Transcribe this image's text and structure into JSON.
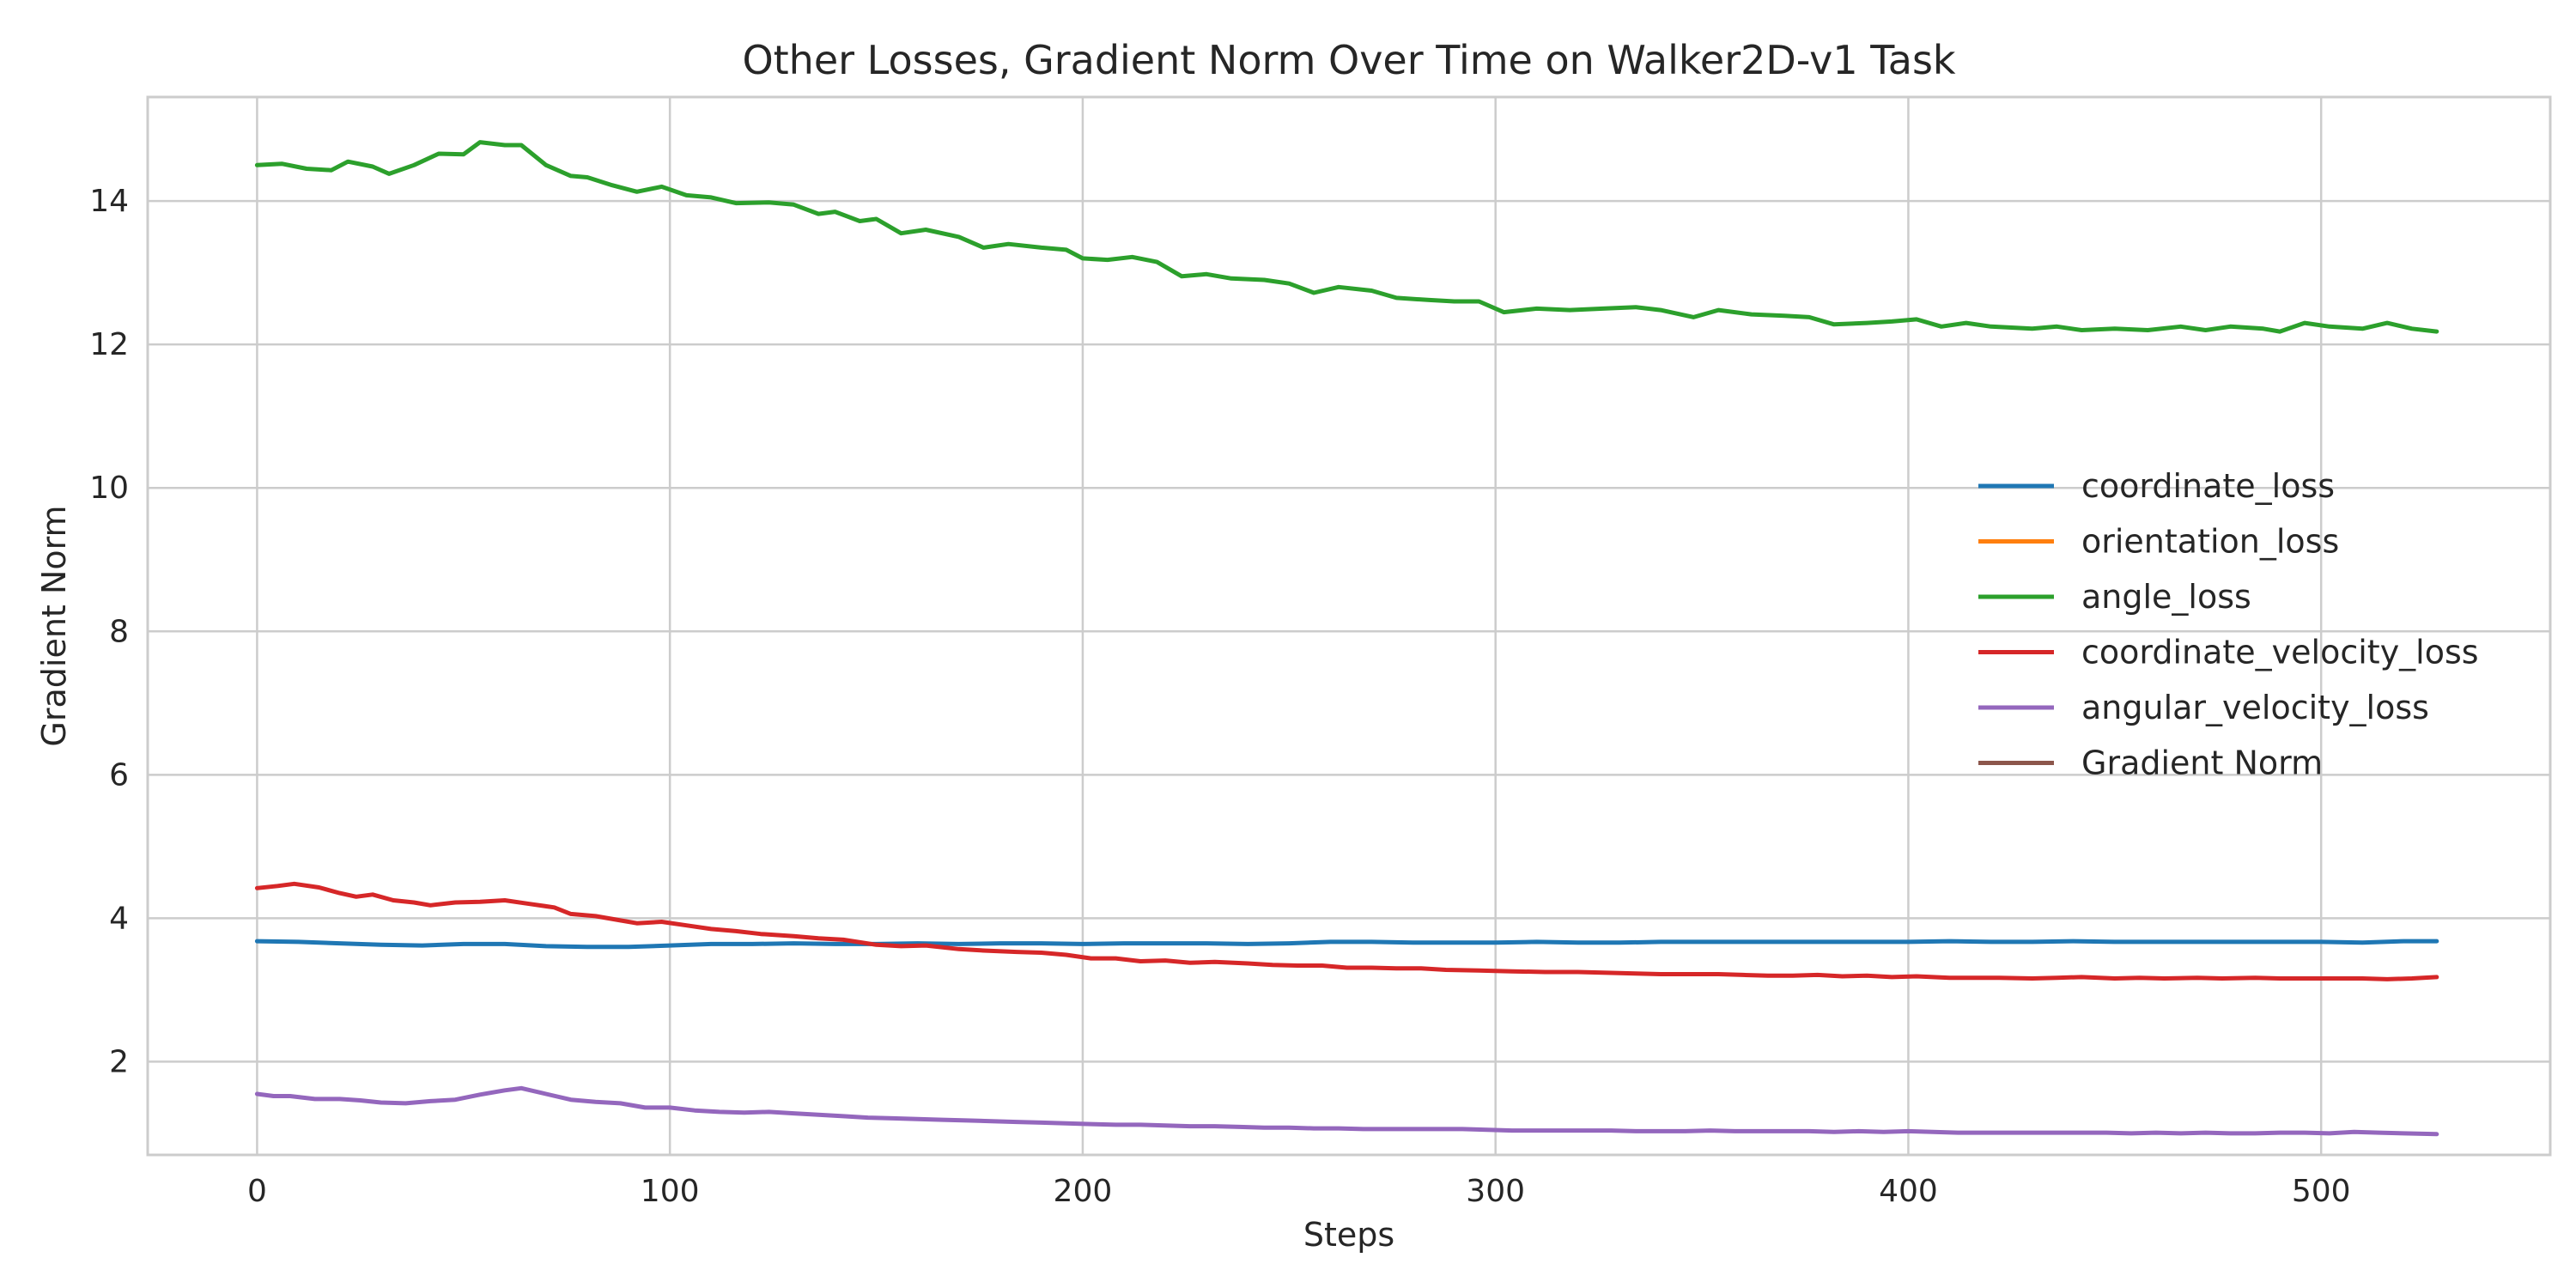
{
  "chart_data": {
    "type": "line",
    "title": "Other Losses, Gradient Norm Over Time on Walker2D-v1 Task",
    "xlabel": "Steps",
    "ylabel": "Gradient Norm",
    "xlim": [
      -26.5,
      555.5
    ],
    "ylim": [
      0.7,
      15.45
    ],
    "xticks": [
      0,
      100,
      200,
      300,
      400,
      500
    ],
    "yticks": [
      2,
      4,
      6,
      8,
      10,
      12,
      14
    ],
    "grid": true,
    "legend_position": "center-right",
    "series": [
      {
        "name": "coordinate_loss",
        "color": "#1f77b4",
        "points": [
          [
            0,
            3.68
          ],
          [
            10,
            3.67
          ],
          [
            20,
            3.65
          ],
          [
            30,
            3.63
          ],
          [
            40,
            3.62
          ],
          [
            50,
            3.64
          ],
          [
            60,
            3.64
          ],
          [
            70,
            3.61
          ],
          [
            80,
            3.6
          ],
          [
            90,
            3.6
          ],
          [
            100,
            3.62
          ],
          [
            110,
            3.64
          ],
          [
            120,
            3.64
          ],
          [
            130,
            3.65
          ],
          [
            140,
            3.64
          ],
          [
            150,
            3.64
          ],
          [
            160,
            3.65
          ],
          [
            170,
            3.64
          ],
          [
            180,
            3.65
          ],
          [
            190,
            3.65
          ],
          [
            200,
            3.64
          ],
          [
            210,
            3.65
          ],
          [
            220,
            3.65
          ],
          [
            230,
            3.65
          ],
          [
            240,
            3.64
          ],
          [
            250,
            3.65
          ],
          [
            260,
            3.67
          ],
          [
            270,
            3.67
          ],
          [
            280,
            3.66
          ],
          [
            290,
            3.66
          ],
          [
            300,
            3.66
          ],
          [
            310,
            3.67
          ],
          [
            320,
            3.66
          ],
          [
            330,
            3.66
          ],
          [
            340,
            3.67
          ],
          [
            350,
            3.67
          ],
          [
            360,
            3.67
          ],
          [
            370,
            3.67
          ],
          [
            380,
            3.67
          ],
          [
            390,
            3.67
          ],
          [
            400,
            3.67
          ],
          [
            410,
            3.68
          ],
          [
            420,
            3.67
          ],
          [
            430,
            3.67
          ],
          [
            440,
            3.68
          ],
          [
            450,
            3.67
          ],
          [
            460,
            3.67
          ],
          [
            470,
            3.67
          ],
          [
            480,
            3.67
          ],
          [
            490,
            3.67
          ],
          [
            500,
            3.67
          ],
          [
            510,
            3.66
          ],
          [
            520,
            3.68
          ],
          [
            528,
            3.68
          ]
        ]
      },
      {
        "name": "orientation_loss",
        "color": "#ff7f0e",
        "points": []
      },
      {
        "name": "angle_loss",
        "color": "#2ca02c",
        "points": [
          [
            0,
            14.5
          ],
          [
            6,
            14.52
          ],
          [
            12,
            14.45
          ],
          [
            18,
            14.43
          ],
          [
            22,
            14.55
          ],
          [
            28,
            14.48
          ],
          [
            32,
            14.38
          ],
          [
            38,
            14.5
          ],
          [
            44,
            14.66
          ],
          [
            50,
            14.65
          ],
          [
            54,
            14.82
          ],
          [
            60,
            14.78
          ],
          [
            64,
            14.78
          ],
          [
            70,
            14.5
          ],
          [
            76,
            14.35
          ],
          [
            80,
            14.33
          ],
          [
            86,
            14.22
          ],
          [
            92,
            14.13
          ],
          [
            98,
            14.2
          ],
          [
            104,
            14.08
          ],
          [
            110,
            14.05
          ],
          [
            116,
            13.97
          ],
          [
            124,
            13.98
          ],
          [
            130,
            13.95
          ],
          [
            136,
            13.82
          ],
          [
            140,
            13.85
          ],
          [
            146,
            13.72
          ],
          [
            150,
            13.75
          ],
          [
            156,
            13.55
          ],
          [
            162,
            13.6
          ],
          [
            170,
            13.5
          ],
          [
            176,
            13.35
          ],
          [
            182,
            13.4
          ],
          [
            190,
            13.35
          ],
          [
            196,
            13.32
          ],
          [
            200,
            13.2
          ],
          [
            206,
            13.18
          ],
          [
            212,
            13.22
          ],
          [
            218,
            13.15
          ],
          [
            224,
            12.95
          ],
          [
            230,
            12.98
          ],
          [
            236,
            12.92
          ],
          [
            244,
            12.9
          ],
          [
            250,
            12.85
          ],
          [
            256,
            12.72
          ],
          [
            262,
            12.8
          ],
          [
            270,
            12.75
          ],
          [
            276,
            12.65
          ],
          [
            284,
            12.62
          ],
          [
            290,
            12.6
          ],
          [
            296,
            12.6
          ],
          [
            302,
            12.45
          ],
          [
            310,
            12.5
          ],
          [
            318,
            12.48
          ],
          [
            326,
            12.5
          ],
          [
            334,
            12.52
          ],
          [
            340,
            12.48
          ],
          [
            348,
            12.38
          ],
          [
            354,
            12.48
          ],
          [
            362,
            12.42
          ],
          [
            370,
            12.4
          ],
          [
            376,
            12.38
          ],
          [
            382,
            12.28
          ],
          [
            390,
            12.3
          ],
          [
            396,
            12.32
          ],
          [
            402,
            12.35
          ],
          [
            408,
            12.25
          ],
          [
            414,
            12.3
          ],
          [
            420,
            12.25
          ],
          [
            430,
            12.22
          ],
          [
            436,
            12.25
          ],
          [
            442,
            12.2
          ],
          [
            450,
            12.22
          ],
          [
            458,
            12.2
          ],
          [
            466,
            12.25
          ],
          [
            472,
            12.2
          ],
          [
            478,
            12.25
          ],
          [
            486,
            12.22
          ],
          [
            490,
            12.18
          ],
          [
            496,
            12.3
          ],
          [
            502,
            12.25
          ],
          [
            510,
            12.22
          ],
          [
            516,
            12.3
          ],
          [
            522,
            12.22
          ],
          [
            528,
            12.18
          ]
        ]
      },
      {
        "name": "coordinate_velocity_loss",
        "color": "#d62728",
        "points": [
          [
            0,
            4.42
          ],
          [
            5,
            4.45
          ],
          [
            9,
            4.48
          ],
          [
            15,
            4.43
          ],
          [
            20,
            4.35
          ],
          [
            24,
            4.3
          ],
          [
            28,
            4.33
          ],
          [
            33,
            4.25
          ],
          [
            38,
            4.22
          ],
          [
            42,
            4.18
          ],
          [
            48,
            4.22
          ],
          [
            54,
            4.23
          ],
          [
            60,
            4.25
          ],
          [
            66,
            4.2
          ],
          [
            72,
            4.15
          ],
          [
            76,
            4.06
          ],
          [
            82,
            4.03
          ],
          [
            88,
            3.97
          ],
          [
            92,
            3.93
          ],
          [
            98,
            3.95
          ],
          [
            104,
            3.9
          ],
          [
            110,
            3.85
          ],
          [
            116,
            3.82
          ],
          [
            122,
            3.78
          ],
          [
            130,
            3.75
          ],
          [
            136,
            3.72
          ],
          [
            142,
            3.7
          ],
          [
            150,
            3.63
          ],
          [
            156,
            3.61
          ],
          [
            162,
            3.62
          ],
          [
            170,
            3.57
          ],
          [
            176,
            3.55
          ],
          [
            184,
            3.53
          ],
          [
            190,
            3.52
          ],
          [
            196,
            3.49
          ],
          [
            202,
            3.44
          ],
          [
            208,
            3.44
          ],
          [
            214,
            3.4
          ],
          [
            220,
            3.41
          ],
          [
            226,
            3.38
          ],
          [
            232,
            3.39
          ],
          [
            240,
            3.37
          ],
          [
            246,
            3.35
          ],
          [
            252,
            3.34
          ],
          [
            258,
            3.34
          ],
          [
            264,
            3.31
          ],
          [
            270,
            3.31
          ],
          [
            276,
            3.3
          ],
          [
            282,
            3.3
          ],
          [
            288,
            3.28
          ],
          [
            296,
            3.27
          ],
          [
            304,
            3.26
          ],
          [
            312,
            3.25
          ],
          [
            320,
            3.25
          ],
          [
            326,
            3.24
          ],
          [
            334,
            3.23
          ],
          [
            340,
            3.22
          ],
          [
            346,
            3.22
          ],
          [
            354,
            3.22
          ],
          [
            360,
            3.21
          ],
          [
            366,
            3.2
          ],
          [
            372,
            3.2
          ],
          [
            378,
            3.21
          ],
          [
            384,
            3.19
          ],
          [
            390,
            3.2
          ],
          [
            396,
            3.18
          ],
          [
            402,
            3.19
          ],
          [
            410,
            3.17
          ],
          [
            416,
            3.17
          ],
          [
            422,
            3.17
          ],
          [
            430,
            3.16
          ],
          [
            436,
            3.17
          ],
          [
            442,
            3.18
          ],
          [
            450,
            3.16
          ],
          [
            456,
            3.17
          ],
          [
            462,
            3.16
          ],
          [
            470,
            3.17
          ],
          [
            476,
            3.16
          ],
          [
            484,
            3.17
          ],
          [
            490,
            3.16
          ],
          [
            498,
            3.16
          ],
          [
            504,
            3.16
          ],
          [
            510,
            3.16
          ],
          [
            516,
            3.15
          ],
          [
            522,
            3.16
          ],
          [
            528,
            3.18
          ]
        ]
      },
      {
        "name": "angular_velocity_loss",
        "color": "#9467bd",
        "points": [
          [
            0,
            1.55
          ],
          [
            4,
            1.52
          ],
          [
            8,
            1.52
          ],
          [
            14,
            1.48
          ],
          [
            20,
            1.48
          ],
          [
            25,
            1.46
          ],
          [
            30,
            1.43
          ],
          [
            36,
            1.42
          ],
          [
            42,
            1.45
          ],
          [
            48,
            1.47
          ],
          [
            54,
            1.54
          ],
          [
            60,
            1.6
          ],
          [
            64,
            1.63
          ],
          [
            70,
            1.55
          ],
          [
            76,
            1.47
          ],
          [
            82,
            1.44
          ],
          [
            88,
            1.42
          ],
          [
            94,
            1.36
          ],
          [
            100,
            1.36
          ],
          [
            106,
            1.32
          ],
          [
            112,
            1.3
          ],
          [
            118,
            1.29
          ],
          [
            124,
            1.3
          ],
          [
            130,
            1.28
          ],
          [
            136,
            1.26
          ],
          [
            142,
            1.24
          ],
          [
            148,
            1.22
          ],
          [
            154,
            1.21
          ],
          [
            160,
            1.2
          ],
          [
            166,
            1.19
          ],
          [
            172,
            1.18
          ],
          [
            178,
            1.17
          ],
          [
            184,
            1.16
          ],
          [
            190,
            1.15
          ],
          [
            196,
            1.14
          ],
          [
            202,
            1.13
          ],
          [
            208,
            1.12
          ],
          [
            214,
            1.12
          ],
          [
            220,
            1.11
          ],
          [
            226,
            1.1
          ],
          [
            232,
            1.1
          ],
          [
            238,
            1.09
          ],
          [
            244,
            1.08
          ],
          [
            250,
            1.08
          ],
          [
            256,
            1.07
          ],
          [
            262,
            1.07
          ],
          [
            268,
            1.06
          ],
          [
            274,
            1.06
          ],
          [
            280,
            1.06
          ],
          [
            286,
            1.06
          ],
          [
            292,
            1.06
          ],
          [
            298,
            1.05
          ],
          [
            304,
            1.04
          ],
          [
            310,
            1.04
          ],
          [
            316,
            1.04
          ],
          [
            322,
            1.04
          ],
          [
            328,
            1.04
          ],
          [
            334,
            1.03
          ],
          [
            340,
            1.03
          ],
          [
            346,
            1.03
          ],
          [
            352,
            1.04
          ],
          [
            358,
            1.03
          ],
          [
            364,
            1.03
          ],
          [
            370,
            1.03
          ],
          [
            376,
            1.03
          ],
          [
            382,
            1.02
          ],
          [
            388,
            1.03
          ],
          [
            394,
            1.02
          ],
          [
            400,
            1.03
          ],
          [
            406,
            1.02
          ],
          [
            412,
            1.01
          ],
          [
            418,
            1.01
          ],
          [
            424,
            1.01
          ],
          [
            430,
            1.01
          ],
          [
            436,
            1.01
          ],
          [
            442,
            1.01
          ],
          [
            448,
            1.01
          ],
          [
            454,
            1.0
          ],
          [
            460,
            1.01
          ],
          [
            466,
            1.0
          ],
          [
            472,
            1.01
          ],
          [
            478,
            1.0
          ],
          [
            484,
            1.0
          ],
          [
            490,
            1.01
          ],
          [
            496,
            1.01
          ],
          [
            502,
            1.0
          ],
          [
            508,
            1.02
          ],
          [
            514,
            1.01
          ],
          [
            520,
            1.0
          ],
          [
            528,
            0.99
          ]
        ]
      },
      {
        "name": "Gradient Norm",
        "color": "#8c564b",
        "points": []
      }
    ]
  }
}
